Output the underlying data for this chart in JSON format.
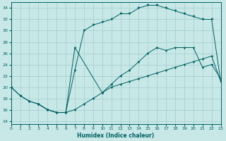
{
  "title": "",
  "xlabel": "Humidex (Indice chaleur)",
  "xlim": [
    0,
    23
  ],
  "ylim": [
    13.5,
    35
  ],
  "xticks": [
    0,
    1,
    2,
    3,
    4,
    5,
    6,
    7,
    8,
    9,
    10,
    11,
    12,
    13,
    14,
    15,
    16,
    17,
    18,
    19,
    20,
    21,
    22,
    23
  ],
  "yticks": [
    14,
    16,
    18,
    20,
    22,
    24,
    26,
    28,
    30,
    32,
    34
  ],
  "bg_color": "#c8e8e8",
  "line_color": "#006060",
  "grid_color": "#a0cccc",
  "curves": [
    {
      "x": [
        0,
        1,
        2,
        3,
        4,
        5,
        6,
        7,
        8,
        9,
        10,
        11,
        12,
        13,
        14,
        15,
        16,
        17,
        18,
        19,
        20,
        21,
        22,
        23
      ],
      "y": [
        20,
        18.5,
        17.5,
        17,
        16,
        15.5,
        15.5,
        16,
        17,
        18,
        19,
        20,
        20.5,
        21,
        21.5,
        22,
        22.5,
        23,
        23.5,
        24,
        24.5,
        25,
        25.5,
        21
      ]
    },
    {
      "x": [
        0,
        1,
        2,
        3,
        4,
        5,
        6,
        7,
        8,
        9,
        10,
        11,
        12,
        13,
        14,
        15,
        16,
        17,
        18,
        19,
        20,
        21,
        22,
        23
      ],
      "y": [
        20,
        18.5,
        17.5,
        17,
        16,
        15.5,
        15.5,
        23,
        30,
        31,
        31.5,
        32,
        33,
        33,
        34,
        34.5,
        34.5,
        34,
        33.5,
        33,
        32.5,
        32,
        32,
        21
      ]
    },
    {
      "x": [
        3,
        4,
        5,
        6,
        7,
        10,
        11,
        12,
        13,
        14,
        15,
        16,
        17,
        18,
        19,
        20,
        21,
        22,
        23
      ],
      "y": [
        17,
        16,
        15.5,
        15.5,
        27,
        19,
        20.5,
        22,
        23,
        24.5,
        26,
        27,
        26.5,
        27,
        27,
        27,
        23.5,
        24,
        21.5
      ]
    }
  ]
}
